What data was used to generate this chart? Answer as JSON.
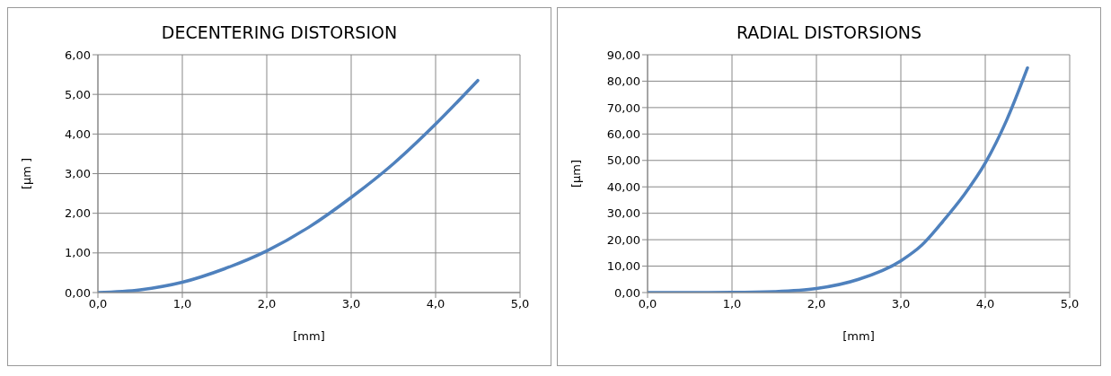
{
  "chart_data": [
    {
      "type": "line",
      "title": "DECENTERING DISTORSION",
      "xlabel": "[mm]",
      "ylabel": "[µm ]",
      "x": [
        0,
        0.5,
        1,
        1.5,
        2,
        2.5,
        3,
        3.5,
        4,
        4.5
      ],
      "series": [
        {
          "color": "#4f81bd",
          "values": [
            0,
            0.07,
            0.26,
            0.6,
            1.05,
            1.65,
            2.4,
            3.25,
            4.25,
            5.35
          ]
        }
      ],
      "xlim": [
        0,
        5
      ],
      "xticks": [
        {
          "value": 0,
          "label": "0,0"
        },
        {
          "value": 1,
          "label": "1,0"
        },
        {
          "value": 2,
          "label": "2,0"
        },
        {
          "value": 3,
          "label": "3,0"
        },
        {
          "value": 4,
          "label": "4,0"
        },
        {
          "value": 5,
          "label": "5,0"
        }
      ],
      "ylim": [
        0,
        6
      ],
      "yticks": [
        {
          "value": 0,
          "label": "0,00"
        },
        {
          "value": 1,
          "label": "1,00"
        },
        {
          "value": 2,
          "label": "2,00"
        },
        {
          "value": 3,
          "label": "3,00"
        },
        {
          "value": 4,
          "label": "4,00"
        },
        {
          "value": 5,
          "label": "5,00"
        },
        {
          "value": 6,
          "label": "6,00"
        }
      ],
      "grid": true,
      "legend": false,
      "marker": "none",
      "line_style": "solid"
    },
    {
      "type": "line",
      "title": "RADIAL DISTORSIONS",
      "xlabel": "[mm]",
      "ylabel": "[µm]",
      "x": [
        0,
        0.5,
        1,
        1.5,
        2,
        2.5,
        3,
        3.25,
        3.5,
        3.75,
        4,
        4.25,
        4.5
      ],
      "series": [
        {
          "color": "#4f81bd",
          "values": [
            0,
            0,
            0.05,
            0.35,
            1.5,
            5,
            12,
            18,
            27,
            37,
            49,
            65,
            85
          ]
        }
      ],
      "xlim": [
        0,
        5
      ],
      "xticks": [
        {
          "value": 0,
          "label": "0,0"
        },
        {
          "value": 1,
          "label": "1,0"
        },
        {
          "value": 2,
          "label": "2,0"
        },
        {
          "value": 3,
          "label": "3,0"
        },
        {
          "value": 4,
          "label": "4,0"
        },
        {
          "value": 5,
          "label": "5,0"
        }
      ],
      "ylim": [
        0,
        90
      ],
      "yticks": [
        {
          "value": 0,
          "label": "0,00"
        },
        {
          "value": 10,
          "label": "10,00"
        },
        {
          "value": 20,
          "label": "20,00"
        },
        {
          "value": 30,
          "label": "30,00"
        },
        {
          "value": 40,
          "label": "40,00"
        },
        {
          "value": 50,
          "label": "50,00"
        },
        {
          "value": 60,
          "label": "60,00"
        },
        {
          "value": 70,
          "label": "70,00"
        },
        {
          "value": 80,
          "label": "80,00"
        },
        {
          "value": 90,
          "label": "90,00"
        }
      ],
      "grid": true,
      "legend": false,
      "marker": "none",
      "line_style": "solid"
    }
  ]
}
